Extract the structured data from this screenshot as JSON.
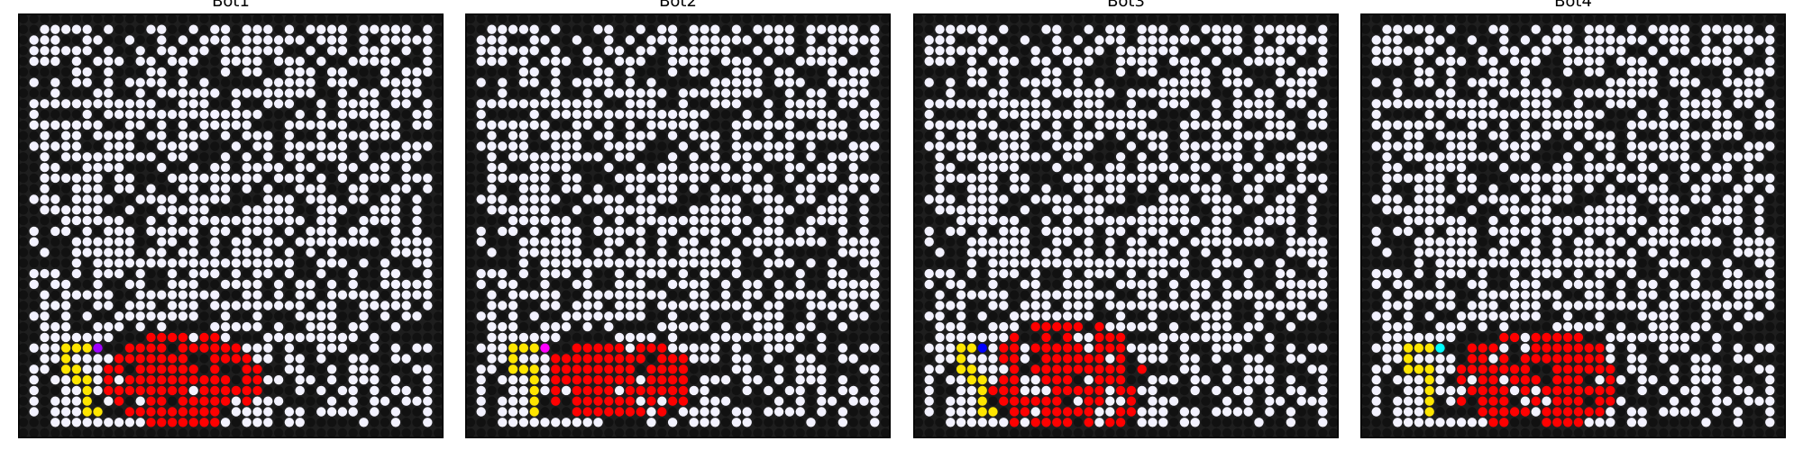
{
  "colors": {
    "background": "#1e1e1e",
    "wall": "#111111",
    "open": "#f3f2ff",
    "path": "#ffe600",
    "fire": "#ff0000",
    "frame": "#000000",
    "bot_markers": [
      "#a000ff",
      "#ff00ff",
      "#0000ff",
      "#00ffff"
    ]
  },
  "panels": [
    {
      "title": "Bot1"
    },
    {
      "title": "Bot2"
    },
    {
      "title": "Bot3"
    },
    {
      "title": "Bot4"
    }
  ]
}
